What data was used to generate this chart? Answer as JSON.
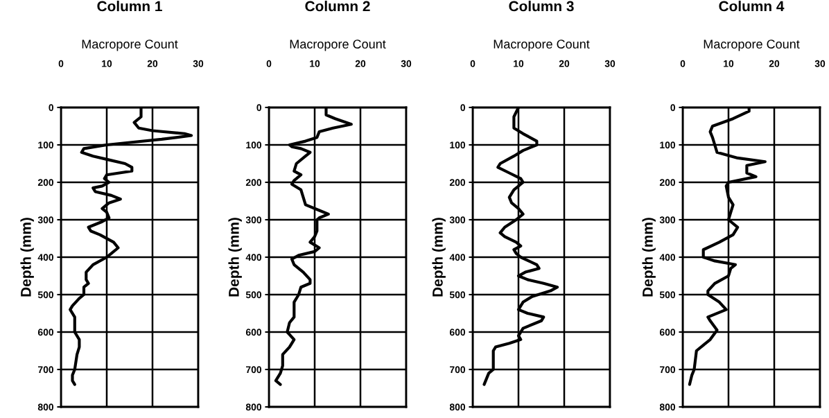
{
  "chart_data": [
    {
      "type": "line",
      "title": "Column 1",
      "xlabel": "Macropore Count",
      "ylabel": "Depth (mm)",
      "xlim": [
        0,
        30
      ],
      "xticks": [
        0,
        10,
        20,
        30
      ],
      "ylim": [
        800,
        0
      ],
      "yticks": [
        0,
        100,
        200,
        300,
        400,
        500,
        600,
        700,
        800
      ],
      "grid": true,
      "marker": "none",
      "line_style": "solid",
      "orientation": "horizontal",
      "series": [
        {
          "color": "#000000",
          "x": [
            0,
            25,
            40,
            55,
            62,
            70,
            75,
            85,
            95,
            100,
            110,
            120,
            130,
            140,
            150,
            160,
            170,
            180,
            190,
            200,
            210,
            215,
            225,
            235,
            245,
            255,
            270,
            280,
            295,
            305,
            320,
            330,
            340,
            360,
            375,
            390,
            400,
            420,
            440,
            460,
            470,
            480,
            500,
            510,
            530,
            540,
            560,
            600,
            620,
            640,
            660,
            700,
            715,
            730,
            740
          ],
          "values": [
            17.5,
            17.5,
            16,
            17,
            20,
            27,
            28.5,
            22,
            14,
            10,
            5,
            4.5,
            7,
            10.5,
            14,
            15.5,
            15.5,
            10,
            9.5,
            10.5,
            9,
            7,
            7.5,
            11,
            13,
            10.5,
            9,
            10,
            10.5,
            9,
            6,
            6.5,
            8.5,
            11.5,
            12.5,
            11,
            10,
            7,
            5.5,
            5.5,
            6,
            5,
            5,
            4,
            2.5,
            2,
            3,
            3,
            4,
            4,
            3.5,
            3,
            2.5,
            2.5,
            3
          ]
        }
      ]
    },
    {
      "type": "line",
      "title": "Column 2",
      "xlabel": "Macropore Count",
      "ylabel": "Depth (mm)",
      "xlim": [
        0,
        30
      ],
      "xticks": [
        0,
        10,
        20,
        30
      ],
      "ylim": [
        800,
        0
      ],
      "yticks": [
        0,
        100,
        200,
        300,
        400,
        500,
        600,
        700,
        800
      ],
      "grid": true,
      "marker": "none",
      "line_style": "solid",
      "orientation": "horizontal",
      "series": [
        {
          "color": "#000000",
          "x": [
            0,
            20,
            30,
            45,
            55,
            65,
            80,
            90,
            100,
            105,
            110,
            120,
            130,
            150,
            170,
            180,
            195,
            205,
            220,
            240,
            260,
            275,
            285,
            295,
            300,
            330,
            345,
            360,
            375,
            385,
            395,
            405,
            420,
            440,
            460,
            470,
            480,
            500,
            520,
            560,
            575,
            600,
            620,
            640,
            660,
            690,
            710,
            730,
            740
          ],
          "values": [
            12.5,
            12.5,
            14.5,
            18,
            14,
            11,
            10.5,
            8,
            4.5,
            5,
            7,
            9,
            8,
            6,
            5.5,
            7,
            5.5,
            5,
            7,
            7.5,
            8,
            11,
            13,
            11,
            10.5,
            10.5,
            10,
            9,
            11,
            10,
            6.5,
            5,
            5.5,
            7.5,
            9,
            9,
            7,
            6.5,
            5.5,
            5.5,
            4.5,
            4,
            5.5,
            4.5,
            3,
            3,
            2.5,
            1.5,
            2.5
          ]
        }
      ]
    },
    {
      "type": "line",
      "title": "Column 3",
      "xlabel": "Macropore Count",
      "ylabel": "Depth (mm)",
      "xlim": [
        0,
        30
      ],
      "xticks": [
        0,
        10,
        20,
        30
      ],
      "ylim": [
        800,
        0
      ],
      "yticks": [
        0,
        100,
        200,
        300,
        400,
        500,
        600,
        700,
        800
      ],
      "grid": true,
      "marker": "none",
      "line_style": "solid",
      "orientation": "horizontal",
      "series": [
        {
          "color": "#000000",
          "x": [
            0,
            25,
            55,
            70,
            90,
            100,
            115,
            130,
            150,
            160,
            175,
            190,
            200,
            220,
            240,
            255,
            270,
            285,
            300,
            320,
            335,
            345,
            360,
            370,
            380,
            390,
            400,
            420,
            430,
            440,
            450,
            460,
            470,
            480,
            490,
            505,
            520,
            540,
            550,
            560,
            570,
            590,
            610,
            620,
            630,
            640,
            650,
            670,
            700,
            710,
            740
          ],
          "values": [
            10,
            9,
            9,
            11,
            14,
            14,
            11,
            9,
            6,
            5.5,
            8,
            10.5,
            11,
            9,
            8,
            8.5,
            10,
            11,
            9.5,
            7,
            6,
            7,
            9.5,
            10.5,
            9,
            9.5,
            10.5,
            14,
            14.5,
            11.5,
            10,
            12,
            15.5,
            18.5,
            17,
            13,
            11,
            10,
            12,
            15.5,
            15,
            11,
            10,
            10.5,
            8,
            5,
            4.5,
            4.5,
            4.5,
            3.5,
            2.5
          ]
        }
      ]
    },
    {
      "type": "line",
      "title": "Column 4",
      "xlabel": "Macropore Count",
      "ylabel": "Depth (mm)",
      "xlim": [
        0,
        30
      ],
      "xticks": [
        0,
        10,
        20,
        30
      ],
      "ylim": [
        800,
        0
      ],
      "yticks": [
        0,
        100,
        200,
        300,
        400,
        500,
        600,
        700,
        800
      ],
      "grid": true,
      "marker": "none",
      "line_style": "solid",
      "orientation": "horizontal",
      "series": [
        {
          "color": "#000000",
          "x": [
            0,
            10,
            30,
            50,
            65,
            80,
            100,
            120,
            135,
            145,
            155,
            175,
            185,
            200,
            210,
            240,
            260,
            280,
            300,
            320,
            340,
            360,
            380,
            400,
            410,
            420,
            430,
            450,
            470,
            490,
            500,
            520,
            540,
            560,
            570,
            595,
            620,
            650,
            700,
            715,
            740
          ],
          "values": [
            14.5,
            14.5,
            11,
            6.5,
            6,
            6.5,
            7,
            7.5,
            12,
            18,
            14,
            14,
            16,
            10,
            9.5,
            10,
            11,
            10.5,
            10,
            12,
            11,
            8,
            4.5,
            4.5,
            7,
            11.5,
            10.5,
            10,
            7,
            5.5,
            5.5,
            8,
            9.5,
            5.5,
            6,
            7.5,
            6,
            3,
            2.5,
            2,
            1.5
          ]
        }
      ]
    }
  ]
}
